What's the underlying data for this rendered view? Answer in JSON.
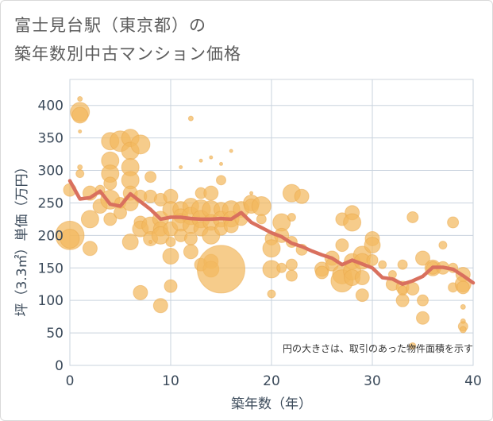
{
  "title": {
    "line1": "富士見台駅（東京都）の",
    "line2": "築年数別中古マンション価格"
  },
  "colors": {
    "bubble_fill": "#f2b85e",
    "bubble_stroke": "#e9a84a",
    "line": "#d9705e",
    "grid": "#c9d3de",
    "plot_border": "#cfd6de",
    "axis_text": "#3b4a5a"
  },
  "chart_data": {
    "type": "scatter",
    "title": "富士見台駅（東京都）の築年数別中古マンション価格",
    "xlabel": "築年数（年）",
    "ylabel": "坪（3.3㎡）単価（万円）",
    "xlim": [
      0,
      40
    ],
    "ylim": [
      0,
      440
    ],
    "x_ticks": [
      0,
      10,
      20,
      30,
      40
    ],
    "y_ticks": [
      0,
      50,
      100,
      150,
      200,
      250,
      300,
      350,
      400
    ],
    "grid": true,
    "annotation": "円の大きさは、取引のあった物件面積を示す",
    "series": [
      {
        "kind": "bubble",
        "points": [
          {
            "x": 0,
            "y": 200,
            "s": 18
          },
          {
            "x": 0,
            "y": 195,
            "s": 12
          },
          {
            "x": 0,
            "y": 270,
            "s": 8
          },
          {
            "x": 1,
            "y": 390,
            "s": 12
          },
          {
            "x": 1,
            "y": 385,
            "s": 10
          },
          {
            "x": 1,
            "y": 410,
            "s": 3
          },
          {
            "x": 1,
            "y": 305,
            "s": 3
          },
          {
            "x": 1,
            "y": 360,
            "s": 2
          },
          {
            "x": 1,
            "y": 295,
            "s": 5
          },
          {
            "x": 2,
            "y": 265,
            "s": 9
          },
          {
            "x": 2,
            "y": 225,
            "s": 11
          },
          {
            "x": 2,
            "y": 180,
            "s": 9
          },
          {
            "x": 3,
            "y": 245,
            "s": 9
          },
          {
            "x": 3,
            "y": 270,
            "s": 6
          },
          {
            "x": 4,
            "y": 345,
            "s": 11
          },
          {
            "x": 4,
            "y": 315,
            "s": 11
          },
          {
            "x": 4,
            "y": 295,
            "s": 11
          },
          {
            "x": 4,
            "y": 280,
            "s": 8
          },
          {
            "x": 4,
            "y": 255,
            "s": 12
          },
          {
            "x": 4,
            "y": 225,
            "s": 8
          },
          {
            "x": 5,
            "y": 250,
            "s": 7
          },
          {
            "x": 5,
            "y": 235,
            "s": 8
          },
          {
            "x": 5,
            "y": 345,
            "s": 13
          },
          {
            "x": 6,
            "y": 350,
            "s": 11
          },
          {
            "x": 6,
            "y": 330,
            "s": 11
          },
          {
            "x": 6,
            "y": 305,
            "s": 11
          },
          {
            "x": 6,
            "y": 285,
            "s": 11
          },
          {
            "x": 6,
            "y": 265,
            "s": 9
          },
          {
            "x": 6,
            "y": 250,
            "s": 10
          },
          {
            "x": 6,
            "y": 190,
            "s": 10
          },
          {
            "x": 7,
            "y": 340,
            "s": 12
          },
          {
            "x": 7,
            "y": 260,
            "s": 8
          },
          {
            "x": 7,
            "y": 220,
            "s": 8
          },
          {
            "x": 7,
            "y": 210,
            "s": 10
          },
          {
            "x": 7,
            "y": 112,
            "s": 9
          },
          {
            "x": 8,
            "y": 290,
            "s": 7
          },
          {
            "x": 8,
            "y": 260,
            "s": 8
          },
          {
            "x": 8,
            "y": 215,
            "s": 11
          },
          {
            "x": 8,
            "y": 195,
            "s": 9
          },
          {
            "x": 8,
            "y": 190,
            "s": 2
          },
          {
            "x": 9,
            "y": 255,
            "s": 8
          },
          {
            "x": 9,
            "y": 225,
            "s": 10
          },
          {
            "x": 9,
            "y": 210,
            "s": 9
          },
          {
            "x": 9,
            "y": 200,
            "s": 11
          },
          {
            "x": 9,
            "y": 92,
            "s": 9
          },
          {
            "x": 10,
            "y": 260,
            "s": 9
          },
          {
            "x": 10,
            "y": 240,
            "s": 10
          },
          {
            "x": 10,
            "y": 210,
            "s": 9
          },
          {
            "x": 10,
            "y": 190,
            "s": 6
          },
          {
            "x": 10,
            "y": 168,
            "s": 10
          },
          {
            "x": 10,
            "y": 122,
            "s": 8
          },
          {
            "x": 11,
            "y": 240,
            "s": 10
          },
          {
            "x": 11,
            "y": 230,
            "s": 9
          },
          {
            "x": 11,
            "y": 220,
            "s": 11
          },
          {
            "x": 11,
            "y": 200,
            "s": 8
          },
          {
            "x": 11,
            "y": 305,
            "s": 2
          },
          {
            "x": 12,
            "y": 380,
            "s": 3
          },
          {
            "x": 12,
            "y": 245,
            "s": 10
          },
          {
            "x": 12,
            "y": 230,
            "s": 11
          },
          {
            "x": 12,
            "y": 215,
            "s": 10
          },
          {
            "x": 12,
            "y": 195,
            "s": 8
          },
          {
            "x": 12,
            "y": 175,
            "s": 9
          },
          {
            "x": 13,
            "y": 265,
            "s": 7
          },
          {
            "x": 13,
            "y": 240,
            "s": 12
          },
          {
            "x": 13,
            "y": 225,
            "s": 11
          },
          {
            "x": 13,
            "y": 210,
            "s": 9
          },
          {
            "x": 13,
            "y": 315,
            "s": 2
          },
          {
            "x": 13,
            "y": 155,
            "s": 8
          },
          {
            "x": 14,
            "y": 265,
            "s": 9
          },
          {
            "x": 14,
            "y": 240,
            "s": 11
          },
          {
            "x": 14,
            "y": 220,
            "s": 10
          },
          {
            "x": 14,
            "y": 200,
            "s": 11
          },
          {
            "x": 14,
            "y": 160,
            "s": 9
          },
          {
            "x": 14,
            "y": 148,
            "s": 10
          },
          {
            "x": 14,
            "y": 320,
            "s": 2
          },
          {
            "x": 15,
            "y": 148,
            "s": 30
          },
          {
            "x": 15,
            "y": 285,
            "s": 6
          },
          {
            "x": 15,
            "y": 240,
            "s": 9
          },
          {
            "x": 15,
            "y": 225,
            "s": 10
          },
          {
            "x": 15,
            "y": 210,
            "s": 8
          },
          {
            "x": 15,
            "y": 310,
            "s": 2
          },
          {
            "x": 16,
            "y": 240,
            "s": 11
          },
          {
            "x": 16,
            "y": 225,
            "s": 10
          },
          {
            "x": 16,
            "y": 215,
            "s": 9
          },
          {
            "x": 16,
            "y": 330,
            "s": 2
          },
          {
            "x": 17,
            "y": 240,
            "s": 10
          },
          {
            "x": 17,
            "y": 225,
            "s": 8
          },
          {
            "x": 18,
            "y": 250,
            "s": 10
          },
          {
            "x": 18,
            "y": 245,
            "s": 9
          },
          {
            "x": 18,
            "y": 265,
            "s": 2
          },
          {
            "x": 19,
            "y": 245,
            "s": 12
          },
          {
            "x": 19,
            "y": 225,
            "s": 6
          },
          {
            "x": 20,
            "y": 195,
            "s": 8
          },
          {
            "x": 20,
            "y": 180,
            "s": 11
          },
          {
            "x": 20,
            "y": 148,
            "s": 11
          },
          {
            "x": 20,
            "y": 110,
            "s": 5
          },
          {
            "x": 21,
            "y": 220,
            "s": 11
          },
          {
            "x": 21,
            "y": 200,
            "s": 9
          },
          {
            "x": 21,
            "y": 150,
            "s": 6
          },
          {
            "x": 22,
            "y": 265,
            "s": 11
          },
          {
            "x": 22,
            "y": 228,
            "s": 5
          },
          {
            "x": 22,
            "y": 190,
            "s": 7
          },
          {
            "x": 22,
            "y": 155,
            "s": 7
          },
          {
            "x": 22,
            "y": 138,
            "s": 7
          },
          {
            "x": 23,
            "y": 260,
            "s": 9
          },
          {
            "x": 23,
            "y": 178,
            "s": 7
          },
          {
            "x": 25,
            "y": 148,
            "s": 9
          },
          {
            "x": 25,
            "y": 143,
            "s": 8
          },
          {
            "x": 26,
            "y": 165,
            "s": 9
          },
          {
            "x": 26,
            "y": 155,
            "s": 8
          },
          {
            "x": 27,
            "y": 225,
            "s": 8
          },
          {
            "x": 27,
            "y": 185,
            "s": 8
          },
          {
            "x": 27,
            "y": 140,
            "s": 12
          },
          {
            "x": 27,
            "y": 130,
            "s": 14
          },
          {
            "x": 28,
            "y": 235,
            "s": 9
          },
          {
            "x": 28,
            "y": 220,
            "s": 11
          },
          {
            "x": 28,
            "y": 160,
            "s": 10
          },
          {
            "x": 28,
            "y": 145,
            "s": 11
          },
          {
            "x": 28,
            "y": 135,
            "s": 10
          },
          {
            "x": 29,
            "y": 170,
            "s": 11
          },
          {
            "x": 29,
            "y": 160,
            "s": 10
          },
          {
            "x": 29,
            "y": 135,
            "s": 9
          },
          {
            "x": 29,
            "y": 108,
            "s": 8
          },
          {
            "x": 30,
            "y": 195,
            "s": 9
          },
          {
            "x": 30,
            "y": 185,
            "s": 10
          },
          {
            "x": 30,
            "y": 162,
            "s": 7
          },
          {
            "x": 31,
            "y": 155,
            "s": 5
          },
          {
            "x": 32,
            "y": 125,
            "s": 8
          },
          {
            "x": 32,
            "y": 140,
            "s": 5
          },
          {
            "x": 33,
            "y": 155,
            "s": 6
          },
          {
            "x": 33,
            "y": 120,
            "s": 8
          },
          {
            "x": 33,
            "y": 115,
            "s": 6
          },
          {
            "x": 33,
            "y": 100,
            "s": 8
          },
          {
            "x": 34,
            "y": 228,
            "s": 7
          },
          {
            "x": 34,
            "y": 118,
            "s": 8
          },
          {
            "x": 34,
            "y": 30,
            "s": 4
          },
          {
            "x": 35,
            "y": 165,
            "s": 9
          },
          {
            "x": 35,
            "y": 100,
            "s": 7
          },
          {
            "x": 35,
            "y": 73,
            "s": 8
          },
          {
            "x": 36,
            "y": 150,
            "s": 10
          },
          {
            "x": 36,
            "y": 150,
            "s": 8
          },
          {
            "x": 37,
            "y": 185,
            "s": 5
          },
          {
            "x": 37,
            "y": 150,
            "s": 8
          },
          {
            "x": 38,
            "y": 220,
            "s": 7
          },
          {
            "x": 38,
            "y": 120,
            "s": 6
          },
          {
            "x": 38,
            "y": 150,
            "s": 6
          },
          {
            "x": 39,
            "y": 140,
            "s": 9
          },
          {
            "x": 39,
            "y": 125,
            "s": 10
          },
          {
            "x": 39,
            "y": 120,
            "s": 8
          },
          {
            "x": 39,
            "y": 90,
            "s": 3
          },
          {
            "x": 39,
            "y": 68,
            "s": 3
          },
          {
            "x": 39,
            "y": 60,
            "s": 6
          },
          {
            "x": 39,
            "y": 55,
            "s": 4
          }
        ]
      },
      {
        "kind": "line",
        "x": [
          0,
          1,
          2,
          3,
          4,
          5,
          6,
          7,
          8,
          9,
          10,
          11,
          12,
          13,
          14,
          15,
          16,
          17,
          18,
          19,
          20,
          21,
          22,
          23,
          24,
          25,
          26,
          27,
          28,
          29,
          30,
          31,
          32,
          33,
          34,
          35,
          36,
          37,
          38,
          39,
          40
        ],
        "values": [
          284,
          256,
          258,
          268,
          248,
          245,
          264,
          252,
          240,
          225,
          228,
          228,
          226,
          225,
          225,
          226,
          225,
          235,
          220,
          212,
          204,
          198,
          188,
          183,
          176,
          170,
          165,
          155,
          162,
          156,
          150,
          135,
          133,
          125,
          130,
          137,
          151,
          151,
          148,
          138,
          127
        ]
      }
    ]
  }
}
